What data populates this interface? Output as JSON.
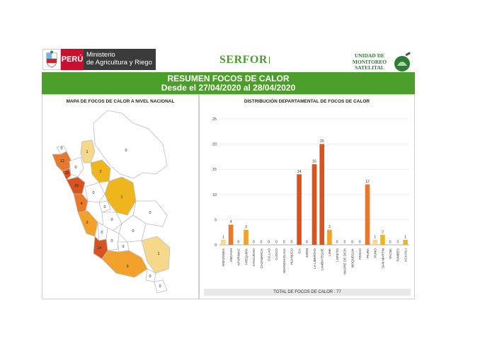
{
  "header": {
    "peru_label": "PERÚ",
    "ministry_line1": "Ministerio",
    "ministry_line2": "de Agricultura y Riego",
    "serfor_label": "SERFOR",
    "unit_line1": "UNIDAD DE",
    "unit_line2": "MONITOREO",
    "unit_line3": "SATELITAL"
  },
  "banner": {
    "title": "RESUMEN FOCOS DE CALOR",
    "subtitle": "Desde el 27/04/2020 al 28/04/2020"
  },
  "map_panel": {
    "title": "MAPA DE FOCOS DE CALOR A NIVEL NACIONAL",
    "legend_colors": [
      "#ffffff",
      "#f5d88a",
      "#eeb51c",
      "#f2a22a",
      "#e8782a",
      "#d9531e",
      "#c8441a"
    ]
  },
  "chart_panel": {
    "title": "DISTRIBUCIÓN DEPARTAMENTAL DE FOCOS DE CALOR",
    "total_label": "TOTAL DE FOCOS DE CALOR : 77"
  },
  "chart_data": {
    "type": "bar",
    "title": "DISTRIBUCIÓN DEPARTAMENTAL DE FOCOS DE CALOR",
    "xlabel": "",
    "ylabel": "",
    "ylim": [
      0,
      25
    ],
    "yticks": [
      0,
      5,
      10,
      15,
      20,
      25
    ],
    "grid": true,
    "categories": [
      "AMAZONAS",
      "ANCASH",
      "APURIMAC",
      "AREQUIPA",
      "AYACUCHO",
      "CAJAMARCA",
      "CALLAO",
      "CUSCO",
      "HUANCAVELICA",
      "HUANUCO",
      "ICA",
      "JUNIN",
      "LA LIBERTAD",
      "LAMBAYEQUE",
      "LIMA",
      "LORETO",
      "MADRE DE DIOS",
      "MOQUEGUA",
      "PASCO",
      "PIURA",
      "PUNO",
      "SAN MARTIN",
      "TACNA",
      "TUMBES",
      "UCAYALI"
    ],
    "values": [
      1,
      4,
      0,
      3,
      0,
      0,
      0,
      0,
      0,
      0,
      14,
      0,
      16,
      20,
      3,
      0,
      0,
      0,
      0,
      12,
      1,
      2,
      0,
      0,
      1
    ],
    "bar_colors": [
      "#f5d88a",
      "#e8782a",
      "#f5d88a",
      "#f2a22a",
      "#f5d88a",
      "#f5d88a",
      "#f5d88a",
      "#f5d88a",
      "#f5d88a",
      "#f5d88a",
      "#d9531e",
      "#f5d88a",
      "#d9531e",
      "#d9531e",
      "#f2a22a",
      "#f5d88a",
      "#f5d88a",
      "#f5d88a",
      "#f5d88a",
      "#e8782a",
      "#f5d88a",
      "#eeb51c",
      "#f5d88a",
      "#f5d88a",
      "#eeb51c"
    ]
  }
}
